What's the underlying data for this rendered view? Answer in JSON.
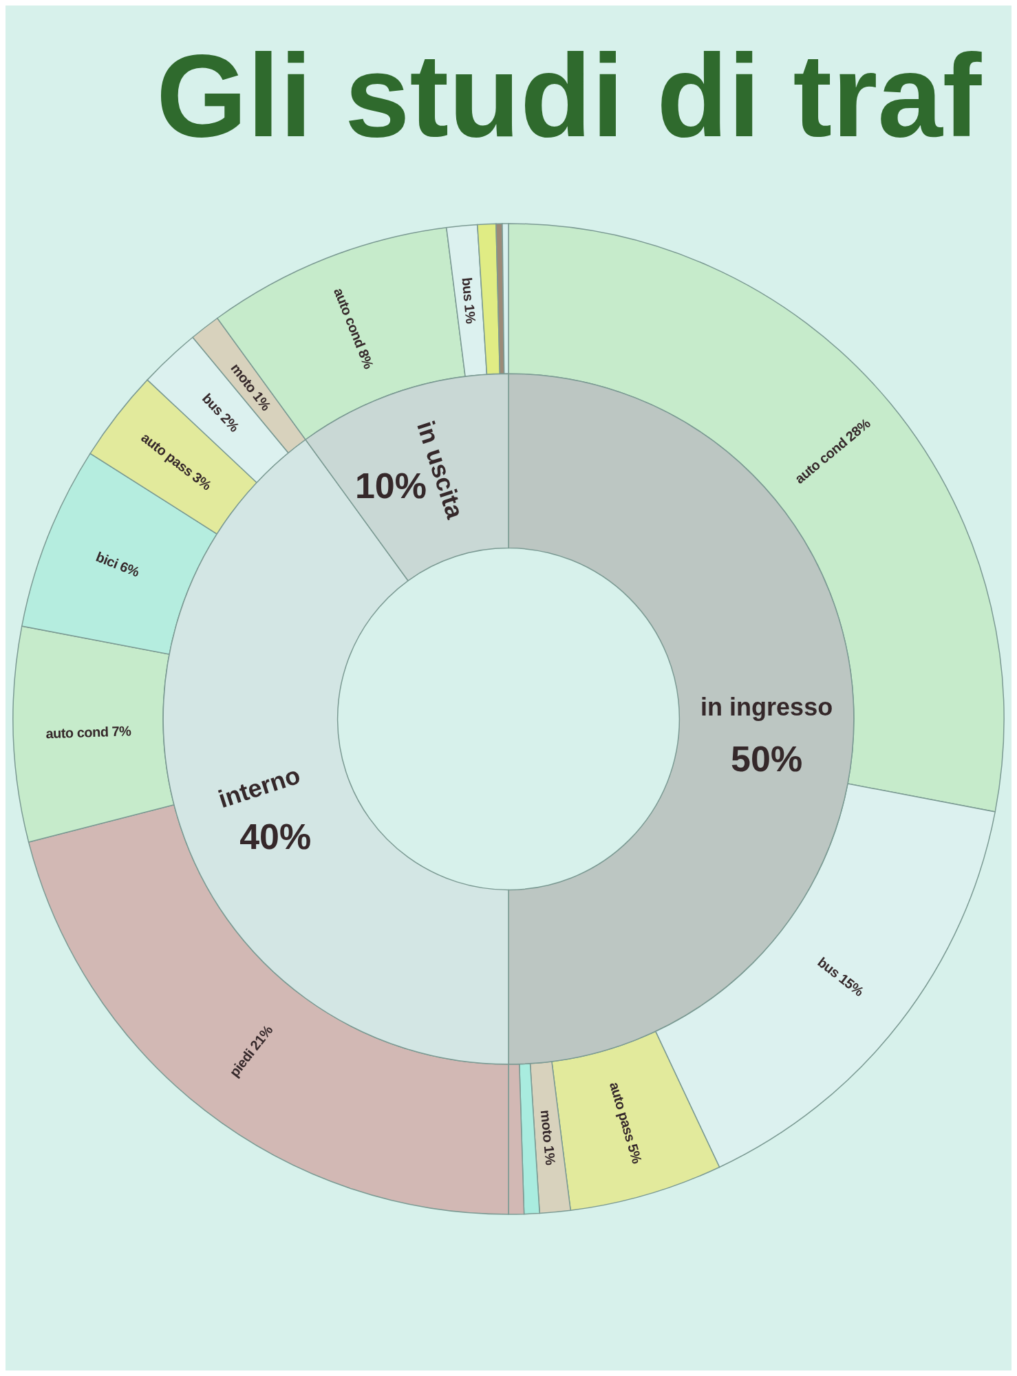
{
  "chart_data": [
    {
      "type": "donut",
      "title": "Gli studi di traf",
      "categories": [
        "auto cond",
        "bus",
        "auto pass",
        "moto",
        null,
        null,
        "piedi",
        "auto cond",
        "bici",
        "auto pass",
        "bus",
        "moto",
        "auto cond",
        "bus",
        null,
        null,
        null
      ],
      "values": [
        28,
        15,
        5,
        1,
        0.5,
        0.5,
        21,
        7,
        6,
        3,
        2,
        1,
        8,
        1,
        0.6,
        0.2,
        0.2
      ],
      "value_labels": [
        "28%",
        "15%",
        "5%",
        "1%",
        null,
        null,
        "21%",
        "7%",
        "6%",
        "3%",
        "2%",
        "1%",
        "8%",
        "1%",
        null,
        null,
        null
      ],
      "colors": [
        "#c6ebcb",
        "#dcf1ef",
        "#e2ea9c",
        "#d8d2bd",
        "#a9ecdf",
        "#d2b8b4",
        "#d2b8b4",
        "#c6ebcb",
        "#b5eddf",
        "#e2ea9c",
        "#dcf1ef",
        "#d8d2bd",
        "#c6ebcb",
        "#dcf1ef",
        "#e0ec84",
        "#9c8a78",
        "#d8f0ee"
      ]
    },
    {
      "type": "donut",
      "categories": [
        "in ingresso",
        "interno",
        "in uscita"
      ],
      "values": [
        50,
        40,
        10
      ],
      "value_labels": [
        "50%",
        "40%",
        "10%"
      ],
      "colors": [
        "#bcc6c2",
        "#d3e6e4",
        "#c9d8d5"
      ]
    }
  ]
}
